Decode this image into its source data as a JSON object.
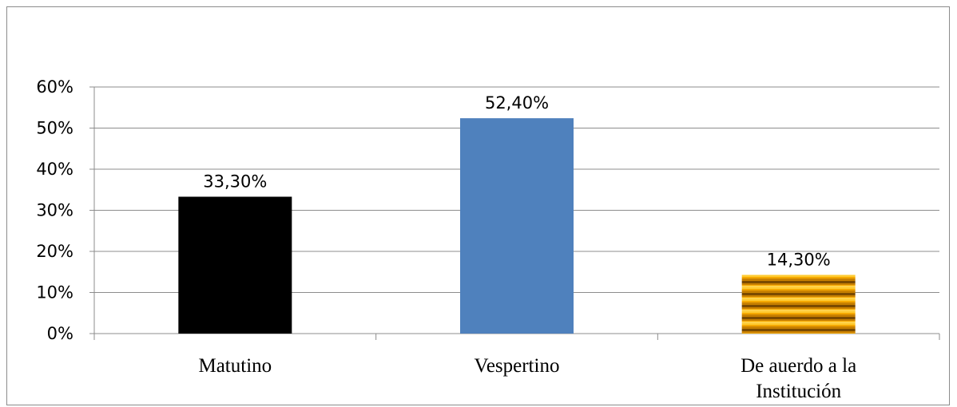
{
  "chart_data": {
    "type": "bar",
    "categories": [
      "Matutino",
      "Vespertino",
      "De auerdo a la Institución"
    ],
    "category_lines": [
      [
        "Matutino"
      ],
      [
        "Vespertino"
      ],
      [
        "De auerdo a la",
        "Institución"
      ]
    ],
    "values": [
      33.3,
      52.4,
      14.3
    ],
    "data_labels": [
      "33,30%",
      "52,40%",
      "14,30%"
    ],
    "bar_colors": [
      "#000000",
      "#4f81bd",
      "#e8a000"
    ],
    "bar_patterns": [
      "solid",
      "solid",
      "horizontal-stripes-gold"
    ],
    "ylim": [
      0,
      60
    ],
    "yticks": [
      0,
      10,
      20,
      30,
      40,
      50,
      60
    ],
    "ytick_labels": [
      "0%",
      "10%",
      "20%",
      "30%",
      "40%",
      "50%",
      "60%"
    ],
    "grid": true,
    "legend": "none",
    "title": "",
    "xlabel": "",
    "ylabel": ""
  },
  "colors": {
    "gridline": "#8c8c8c",
    "axis": "#8c8c8c",
    "frame": "#8c8c8c"
  }
}
